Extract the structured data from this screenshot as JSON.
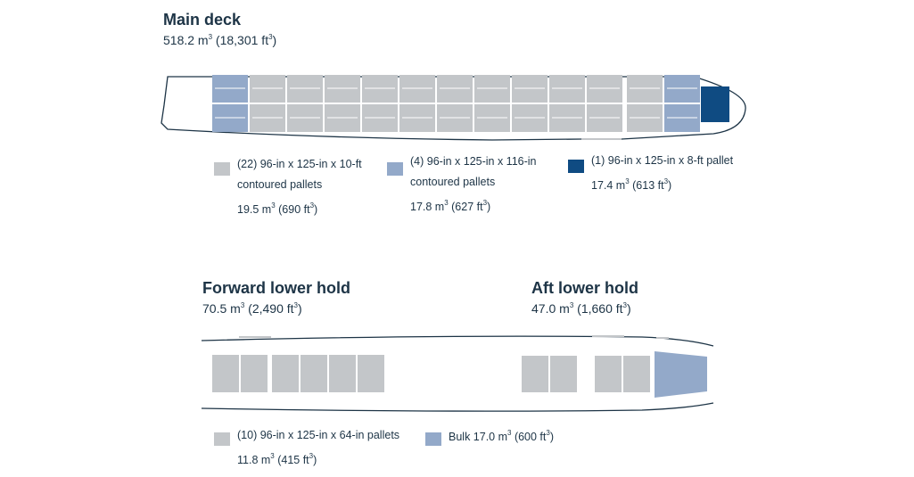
{
  "colors": {
    "outline": "#1d3446",
    "standard_pallet": "#c3c6c9",
    "contoured_pallet": "#93a9c9",
    "flat_pallet": "#0f4b82",
    "bulk": "#93a9c9",
    "text": "#1d3446"
  },
  "main_deck": {
    "title": "Main deck",
    "volume_prefix": "518.2 m",
    "volume_suffix": " (18,301 ft",
    "volume_end": ")"
  },
  "main_legend": [
    {
      "color_key": "standard_pallet",
      "lines": [
        "(22) 96-in x 125-in x 10-ft",
        "contoured pallets"
      ],
      "volume": {
        "pre": "19.5 m",
        "mid": " (690 ft",
        "end": ")"
      }
    },
    {
      "color_key": "contoured_pallet",
      "lines": [
        "(4) 96-in x 125-in x 116-in",
        "contoured pallets"
      ],
      "volume": {
        "pre": "17.8 m",
        "mid": " (627 ft",
        "end": ")"
      }
    },
    {
      "color_key": "flat_pallet",
      "lines": [
        "(1) 96-in x 125-in x 8-ft pallet"
      ],
      "volume": {
        "pre": "17.4 m",
        "mid": " (613 ft",
        "end": ")"
      }
    }
  ],
  "forward_hold": {
    "title": "Forward lower hold",
    "volume_prefix": "70.5 m",
    "volume_suffix": " (2,490 ft",
    "volume_end": ")"
  },
  "aft_hold": {
    "title": "Aft lower hold",
    "volume_prefix": "47.0 m",
    "volume_suffix": " (1,660 ft",
    "volume_end": ")"
  },
  "lower_legend": [
    {
      "color_key": "standard_pallet",
      "lines": [
        "(10) 96-in x 125-in x 64-in pallets"
      ],
      "volume": {
        "pre": "11.8 m",
        "mid": " (415 ft",
        "end": ")"
      }
    },
    {
      "color_key": "bulk",
      "lines": [
        "Bulk 17.0 m"
      ],
      "line_suffix": " (600 ft",
      "line_end": ")"
    }
  ],
  "superscript": "3"
}
